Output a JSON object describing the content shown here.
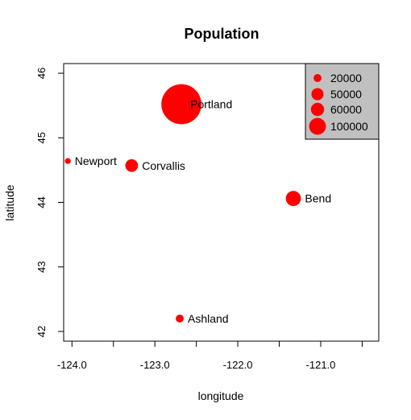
{
  "chart_data": {
    "type": "scatter",
    "title": "Population",
    "xlabel": "longitude",
    "ylabel": "latitude",
    "xlim": [
      -124.1,
      -120.3
    ],
    "ylim": [
      41.85,
      46.15
    ],
    "x_ticks": [
      -124.0,
      -123.5,
      -123.0,
      -122.5,
      -122.0,
      -121.5,
      -121.0,
      -120.5
    ],
    "x_tick_labels": [
      "-124.0",
      "",
      "-123.0",
      "",
      "-122.0",
      "",
      "-121.0",
      ""
    ],
    "y_ticks": [
      42,
      43,
      44,
      45,
      46
    ],
    "y_tick_labels": [
      "42",
      "43",
      "44",
      "45",
      "46"
    ],
    "marker_color": "#ff0000",
    "grid": false,
    "points": [
      {
        "label": "Portland",
        "x": -122.68,
        "y": 45.52,
        "size": 600000
      },
      {
        "label": "Newport",
        "x": -124.05,
        "y": 44.64,
        "size": 10000
      },
      {
        "label": "Corvallis",
        "x": -123.28,
        "y": 44.57,
        "size": 55000
      },
      {
        "label": "Bend",
        "x": -121.33,
        "y": 44.06,
        "size": 80000
      },
      {
        "label": "Ashland",
        "x": -122.7,
        "y": 42.2,
        "size": 20000
      }
    ],
    "legend": {
      "position": "top-right",
      "background": "#c0c0c0",
      "entries": [
        {
          "label": "20000",
          "size": 20000
        },
        {
          "label": "50000",
          "size": 50000
        },
        {
          "label": "60000",
          "size": 60000
        },
        {
          "label": "100000",
          "size": 100000
        }
      ]
    }
  }
}
